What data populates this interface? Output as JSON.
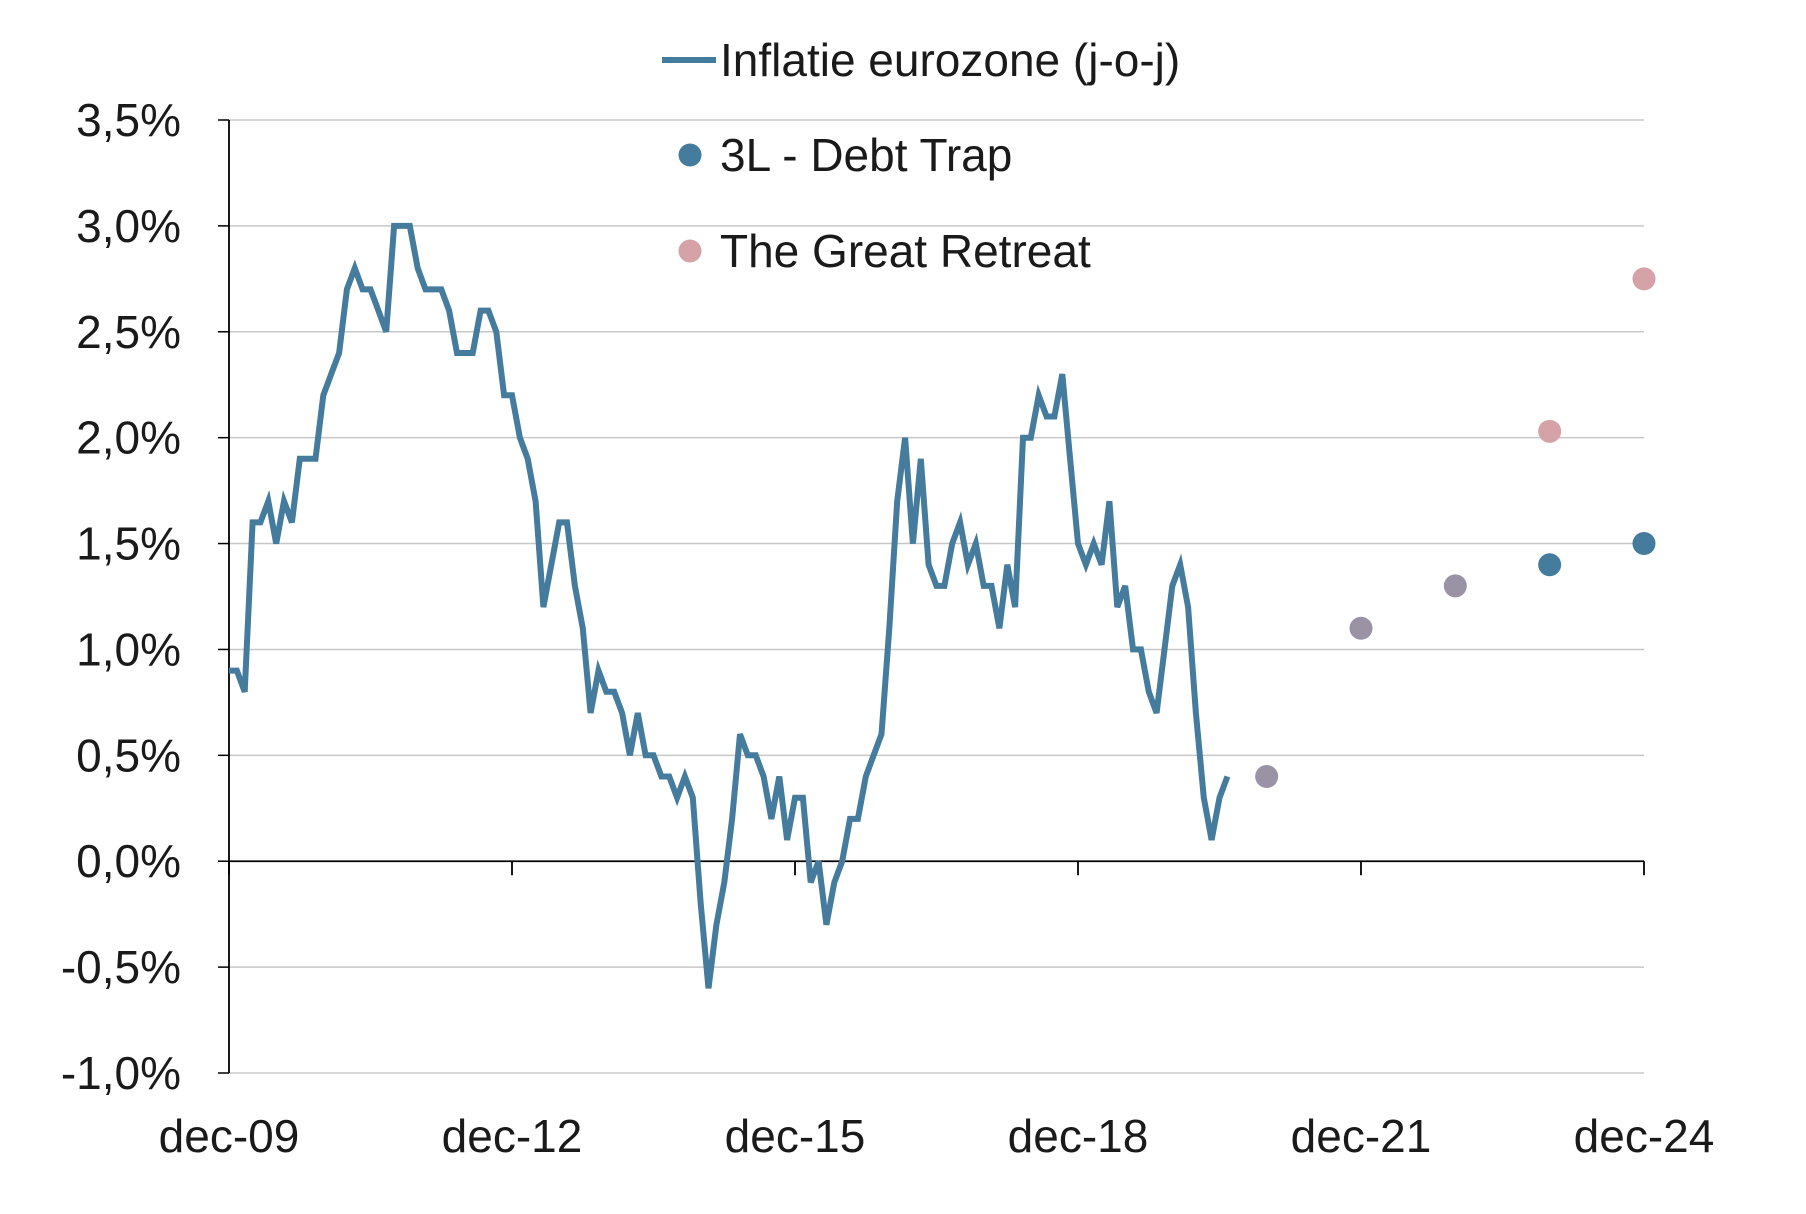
{
  "chart_data": {
    "type": "line",
    "title": "",
    "xlabel": "",
    "ylabel": "",
    "ylim": [
      -1.0,
      3.5
    ],
    "y_ticks": [
      {
        "value": -1.0,
        "label": "-1,0%"
      },
      {
        "value": -0.5,
        "label": "-0,5%"
      },
      {
        "value": 0.0,
        "label": "0,0%"
      },
      {
        "value": 0.5,
        "label": "0,5%"
      },
      {
        "value": 1.0,
        "label": "1,0%"
      },
      {
        "value": 1.5,
        "label": "1,5%"
      },
      {
        "value": 2.0,
        "label": "2,0%"
      },
      {
        "value": 2.5,
        "label": "2,5%"
      },
      {
        "value": 3.0,
        "label": "3,0%"
      },
      {
        "value": 3.5,
        "label": "3,5%"
      }
    ],
    "x_range": [
      "2009-12",
      "2024-12"
    ],
    "x_ticks": [
      {
        "value": "2009-12",
        "label": "dec-09"
      },
      {
        "value": "2012-12",
        "label": "dec-12"
      },
      {
        "value": "2015-12",
        "label": "dec-15"
      },
      {
        "value": "2018-12",
        "label": "dec-18"
      },
      {
        "value": "2021-12",
        "label": "dec-21"
      },
      {
        "value": "2024-12",
        "label": "dec-24"
      }
    ],
    "grid": true,
    "legend_position": "top-center",
    "series": [
      {
        "name": "Inflatie eurozone (j-o-j)",
        "kind": "line",
        "color": "#457b9d",
        "points": [
          [
            "2009-12",
            0.9
          ],
          [
            "2010-01",
            0.9
          ],
          [
            "2010-02",
            0.8
          ],
          [
            "2010-03",
            1.6
          ],
          [
            "2010-04",
            1.6
          ],
          [
            "2010-05",
            1.7
          ],
          [
            "2010-06",
            1.5
          ],
          [
            "2010-07",
            1.7
          ],
          [
            "2010-08",
            1.6
          ],
          [
            "2010-09",
            1.9
          ],
          [
            "2010-10",
            1.9
          ],
          [
            "2010-11",
            1.9
          ],
          [
            "2010-12",
            2.2
          ],
          [
            "2011-01",
            2.3
          ],
          [
            "2011-02",
            2.4
          ],
          [
            "2011-03",
            2.7
          ],
          [
            "2011-04",
            2.8
          ],
          [
            "2011-05",
            2.7
          ],
          [
            "2011-06",
            2.7
          ],
          [
            "2011-07",
            2.6
          ],
          [
            "2011-08",
            2.5
          ],
          [
            "2011-09",
            3.0
          ],
          [
            "2011-10",
            3.0
          ],
          [
            "2011-11",
            3.0
          ],
          [
            "2011-12",
            2.8
          ],
          [
            "2012-01",
            2.7
          ],
          [
            "2012-02",
            2.7
          ],
          [
            "2012-03",
            2.7
          ],
          [
            "2012-04",
            2.6
          ],
          [
            "2012-05",
            2.4
          ],
          [
            "2012-06",
            2.4
          ],
          [
            "2012-07",
            2.4
          ],
          [
            "2012-08",
            2.6
          ],
          [
            "2012-09",
            2.6
          ],
          [
            "2012-10",
            2.5
          ],
          [
            "2012-11",
            2.2
          ],
          [
            "2012-12",
            2.2
          ],
          [
            "2013-01",
            2.0
          ],
          [
            "2013-02",
            1.9
          ],
          [
            "2013-03",
            1.7
          ],
          [
            "2013-04",
            1.2
          ],
          [
            "2013-05",
            1.4
          ],
          [
            "2013-06",
            1.6
          ],
          [
            "2013-07",
            1.6
          ],
          [
            "2013-08",
            1.3
          ],
          [
            "2013-09",
            1.1
          ],
          [
            "2013-10",
            0.7
          ],
          [
            "2013-11",
            0.9
          ],
          [
            "2013-12",
            0.8
          ],
          [
            "2014-01",
            0.8
          ],
          [
            "2014-02",
            0.7
          ],
          [
            "2014-03",
            0.5
          ],
          [
            "2014-04",
            0.7
          ],
          [
            "2014-05",
            0.5
          ],
          [
            "2014-06",
            0.5
          ],
          [
            "2014-07",
            0.4
          ],
          [
            "2014-08",
            0.4
          ],
          [
            "2014-09",
            0.3
          ],
          [
            "2014-10",
            0.4
          ],
          [
            "2014-11",
            0.3
          ],
          [
            "2014-12",
            -0.2
          ],
          [
            "2015-01",
            -0.6
          ],
          [
            "2015-02",
            -0.3
          ],
          [
            "2015-03",
            -0.1
          ],
          [
            "2015-04",
            0.2
          ],
          [
            "2015-05",
            0.6
          ],
          [
            "2015-06",
            0.5
          ],
          [
            "2015-07",
            0.5
          ],
          [
            "2015-08",
            0.4
          ],
          [
            "2015-09",
            0.2
          ],
          [
            "2015-10",
            0.4
          ],
          [
            "2015-11",
            0.1
          ],
          [
            "2015-12",
            0.3
          ],
          [
            "2016-01",
            0.3
          ],
          [
            "2016-02",
            -0.1
          ],
          [
            "2016-03",
            0.0
          ],
          [
            "2016-04",
            -0.3
          ],
          [
            "2016-05",
            -0.1
          ],
          [
            "2016-06",
            0.0
          ],
          [
            "2016-07",
            0.2
          ],
          [
            "2016-08",
            0.2
          ],
          [
            "2016-09",
            0.4
          ],
          [
            "2016-10",
            0.5
          ],
          [
            "2016-11",
            0.6
          ],
          [
            "2016-12",
            1.1
          ],
          [
            "2017-01",
            1.7
          ],
          [
            "2017-02",
            2.0
          ],
          [
            "2017-03",
            1.5
          ],
          [
            "2017-04",
            1.9
          ],
          [
            "2017-05",
            1.4
          ],
          [
            "2017-06",
            1.3
          ],
          [
            "2017-07",
            1.3
          ],
          [
            "2017-08",
            1.5
          ],
          [
            "2017-09",
            1.6
          ],
          [
            "2017-10",
            1.4
          ],
          [
            "2017-11",
            1.5
          ],
          [
            "2017-12",
            1.3
          ],
          [
            "2018-01",
            1.3
          ],
          [
            "2018-02",
            1.1
          ],
          [
            "2018-03",
            1.4
          ],
          [
            "2018-04",
            1.2
          ],
          [
            "2018-05",
            2.0
          ],
          [
            "2018-06",
            2.0
          ],
          [
            "2018-07",
            2.2
          ],
          [
            "2018-08",
            2.1
          ],
          [
            "2018-09",
            2.1
          ],
          [
            "2018-10",
            2.3
          ],
          [
            "2018-11",
            1.9
          ],
          [
            "2018-12",
            1.5
          ],
          [
            "2019-01",
            1.4
          ],
          [
            "2019-02",
            1.5
          ],
          [
            "2019-03",
            1.4
          ],
          [
            "2019-04",
            1.7
          ],
          [
            "2019-05",
            1.2
          ],
          [
            "2019-06",
            1.3
          ],
          [
            "2019-07",
            1.0
          ],
          [
            "2019-08",
            1.0
          ],
          [
            "2019-09",
            0.8
          ],
          [
            "2019-10",
            0.7
          ],
          [
            "2019-11",
            1.0
          ],
          [
            "2019-12",
            1.3
          ],
          [
            "2020-01",
            1.4
          ],
          [
            "2020-02",
            1.2
          ],
          [
            "2020-03",
            0.7
          ],
          [
            "2020-04",
            0.3
          ],
          [
            "2020-05",
            0.1
          ],
          [
            "2020-06",
            0.3
          ],
          [
            "2020-07",
            0.4
          ]
        ]
      },
      {
        "name": "3L - Debt Trap",
        "kind": "scatter",
        "color": "#457b9d",
        "points": [
          [
            "2020-12",
            0.4
          ],
          [
            "2021-12",
            1.1
          ],
          [
            "2022-12",
            1.3
          ],
          [
            "2023-12",
            1.4
          ],
          [
            "2024-12",
            1.5
          ]
        ]
      },
      {
        "name": "The Great Retreat",
        "kind": "scatter",
        "color": "#d4a2a7",
        "overlap_color": "#9a93a6",
        "points": [
          [
            "2020-12",
            0.4
          ],
          [
            "2021-12",
            1.1
          ],
          [
            "2022-12",
            1.3
          ],
          [
            "2023-12",
            2.03
          ],
          [
            "2024-12",
            2.75
          ]
        ]
      }
    ]
  }
}
